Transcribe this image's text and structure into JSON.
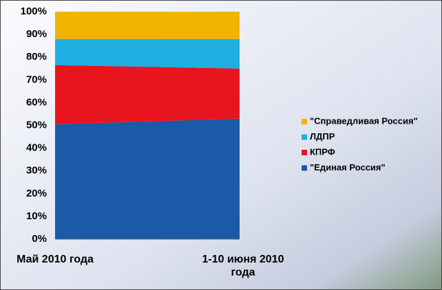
{
  "chart_data": {
    "type": "stacked_area_100",
    "categories": [
      "Май 2010 года",
      "1-10 июня 2010 года"
    ],
    "series": [
      {
        "name": "\"Единая Россия\"",
        "color": "#1a5aa8",
        "values": [
          50.5,
          53
        ]
      },
      {
        "name": "КПРФ",
        "color": "#e8141e",
        "values": [
          26,
          22
        ]
      },
      {
        "name": "ЛДПР",
        "color": "#1eaee0",
        "values": [
          11.5,
          13
        ]
      },
      {
        "name": "\"Справедливая Россия\"",
        "color": "#f0b400",
        "values": [
          12,
          12
        ]
      }
    ],
    "ylim": [
      0,
      100
    ],
    "yticks": [
      {
        "value": 0,
        "label": "0%"
      },
      {
        "value": 10,
        "label": "10%"
      },
      {
        "value": 20,
        "label": "20%"
      },
      {
        "value": 30,
        "label": "30%"
      },
      {
        "value": 40,
        "label": "40%"
      },
      {
        "value": 50,
        "label": "50%"
      },
      {
        "value": 60,
        "label": "60%"
      },
      {
        "value": 70,
        "label": "70%"
      },
      {
        "value": 80,
        "label": "80%"
      },
      {
        "value": 90,
        "label": "90%"
      },
      {
        "value": 100,
        "label": "100%"
      }
    ],
    "legend": "right"
  }
}
